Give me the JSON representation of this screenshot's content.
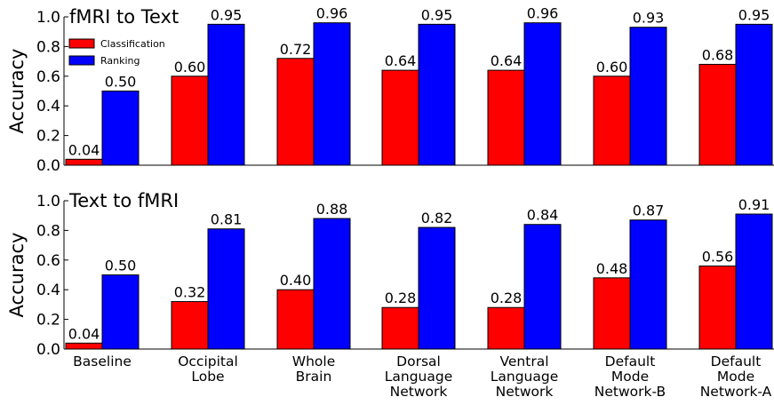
{
  "colors": {
    "classification": "#ff0000",
    "ranking": "#0000ff"
  },
  "chart_data": [
    {
      "type": "bar",
      "title": "fMRI to Text",
      "xlabel": "",
      "ylabel": "Accuracy",
      "ylim": [
        0,
        1.0
      ],
      "yticks": [
        "0.0",
        "0.2",
        "0.4",
        "0.6",
        "0.8",
        "1.0"
      ],
      "grid": false,
      "legend_position": "top-left",
      "categories": [
        [
          "Baseline"
        ],
        [
          "Occipital",
          "Lobe"
        ],
        [
          "Whole",
          "Brain"
        ],
        [
          "Dorsal",
          "Language",
          "Network"
        ],
        [
          "Ventral",
          "Language",
          "Network"
        ],
        [
          "Default",
          "Mode",
          "Network-B"
        ],
        [
          "Default",
          "Mode",
          "Network-A"
        ]
      ],
      "series": [
        {
          "name": "Classification",
          "values": [
            0.04,
            0.6,
            0.72,
            0.64,
            0.64,
            0.6,
            0.68
          ],
          "labels": [
            "0.04",
            "0.60",
            "0.72",
            "0.64",
            "0.64",
            "0.60",
            "0.68"
          ]
        },
        {
          "name": "Ranking",
          "values": [
            0.5,
            0.95,
            0.96,
            0.95,
            0.96,
            0.93,
            0.95
          ],
          "labels": [
            "0.50",
            "0.95",
            "0.96",
            "0.95",
            "0.96",
            "0.93",
            "0.95"
          ]
        }
      ]
    },
    {
      "type": "bar",
      "title": "Text to fMRI",
      "xlabel": "",
      "ylabel": "Accuracy",
      "ylim": [
        0,
        1.0
      ],
      "yticks": [
        "0.0",
        "0.2",
        "0.4",
        "0.6",
        "0.8",
        "1.0"
      ],
      "grid": false,
      "categories": [
        [
          "Baseline"
        ],
        [
          "Occipital",
          "Lobe"
        ],
        [
          "Whole",
          "Brain"
        ],
        [
          "Dorsal",
          "Language",
          "Network"
        ],
        [
          "Ventral",
          "Language",
          "Network"
        ],
        [
          "Default",
          "Mode",
          "Network-B"
        ],
        [
          "Default",
          "Mode",
          "Network-A"
        ]
      ],
      "series": [
        {
          "name": "Classification",
          "values": [
            0.04,
            0.32,
            0.4,
            0.28,
            0.28,
            0.48,
            0.56
          ],
          "labels": [
            "0.04",
            "0.32",
            "0.40",
            "0.28",
            "0.28",
            "0.48",
            "0.56"
          ]
        },
        {
          "name": "Ranking",
          "values": [
            0.5,
            0.81,
            0.88,
            0.82,
            0.84,
            0.87,
            0.91
          ],
          "labels": [
            "0.50",
            "0.81",
            "0.88",
            "0.82",
            "0.84",
            "0.87",
            "0.91"
          ]
        }
      ]
    }
  ]
}
